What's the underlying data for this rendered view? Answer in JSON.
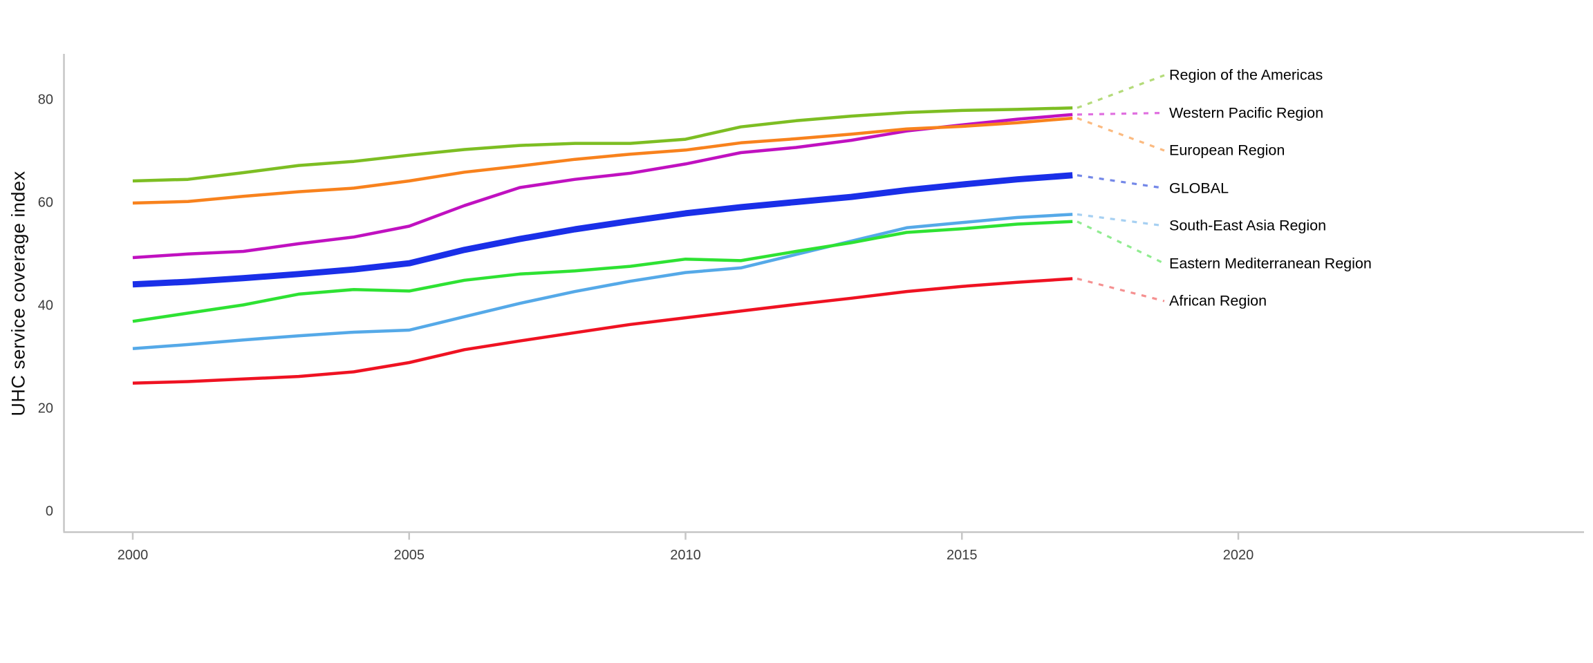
{
  "chart_data": {
    "type": "line",
    "title": "",
    "xlabel": "",
    "ylabel": "UHC service coverage index",
    "x": [
      2000,
      2001,
      2002,
      2003,
      2004,
      2005,
      2006,
      2007,
      2008,
      2009,
      2010,
      2011,
      2012,
      2013,
      2014,
      2015,
      2016,
      2017
    ],
    "xticks": [
      2000,
      2005,
      2010,
      2015,
      2020
    ],
    "yticks": [
      0,
      20,
      40,
      60,
      80
    ],
    "xlim": [
      1998.75,
      2026.25
    ],
    "ylim": [
      0,
      89
    ],
    "grid": false,
    "legend_position": "right-edge-labels-with-dashed-leaders",
    "axis_color": "#c6c6c6",
    "tick_label_color": "#3c3c3c",
    "label_color": "#000000",
    "series": [
      {
        "id": "region-of-the-americas",
        "name": "Region of the Americas",
        "color": "#7DBE23",
        "leader_color": "#B4DB7A",
        "width": 4.5,
        "values": [
          64.3,
          64.6,
          65.9,
          67.3,
          68.1,
          69.3,
          70.4,
          71.2,
          71.6,
          71.6,
          72.4,
          74.8,
          76.0,
          76.9,
          77.6,
          78.0,
          78.2,
          78.5
        ]
      },
      {
        "id": "western-pacific-region",
        "name": "Western Pacific Region",
        "color": "#C011C0",
        "leader_color": "#E070E0",
        "width": 4.5,
        "values": [
          49.4,
          50.1,
          50.6,
          52.1,
          53.4,
          55.5,
          59.5,
          63.0,
          64.6,
          65.8,
          67.6,
          69.8,
          70.8,
          72.2,
          74.0,
          75.2,
          76.3,
          77.2
        ]
      },
      {
        "id": "european-region",
        "name": "European Region",
        "color": "#F8821D",
        "leader_color": "#FBBA80",
        "width": 4.5,
        "values": [
          60.0,
          60.3,
          61.3,
          62.2,
          62.9,
          64.3,
          66.0,
          67.2,
          68.5,
          69.5,
          70.3,
          71.7,
          72.5,
          73.4,
          74.4,
          74.9,
          75.6,
          76.5
        ]
      },
      {
        "id": "global",
        "name": "GLOBAL",
        "color": "#1A2FE8",
        "leader_color": "#7488E8",
        "width": 9,
        "values": [
          44.2,
          44.7,
          45.4,
          46.2,
          47.1,
          48.3,
          50.9,
          53.0,
          54.9,
          56.5,
          58.0,
          59.2,
          60.2,
          61.2,
          62.5,
          63.6,
          64.6,
          65.4
        ]
      },
      {
        "id": "south-east-asia-region",
        "name": "South-East Asia Region",
        "color": "#55A9E8",
        "leader_color": "#A6D0F2",
        "width": 4.5,
        "values": [
          31.7,
          32.5,
          33.4,
          34.2,
          34.9,
          35.3,
          37.9,
          40.5,
          42.8,
          44.8,
          46.5,
          47.4,
          50.0,
          52.6,
          55.2,
          56.2,
          57.2,
          57.8
        ]
      },
      {
        "id": "eastern-mediterranean-region",
        "name": "Eastern Mediterranean Region",
        "color": "#2EE233",
        "leader_color": "#90EC90",
        "width": 4.5,
        "values": [
          37.0,
          38.6,
          40.2,
          42.3,
          43.2,
          42.9,
          45.0,
          46.2,
          46.8,
          47.7,
          49.1,
          48.8,
          50.6,
          52.3,
          54.3,
          55.0,
          55.9,
          56.4
        ]
      },
      {
        "id": "african-region",
        "name": "African Region",
        "color": "#EF1222",
        "leader_color": "#F59090",
        "width": 4.5,
        "values": [
          25.0,
          25.3,
          25.8,
          26.3,
          27.2,
          29.0,
          31.5,
          33.2,
          34.8,
          36.4,
          37.7,
          39.0,
          40.3,
          41.5,
          42.8,
          43.8,
          44.6,
          45.3
        ]
      }
    ]
  }
}
